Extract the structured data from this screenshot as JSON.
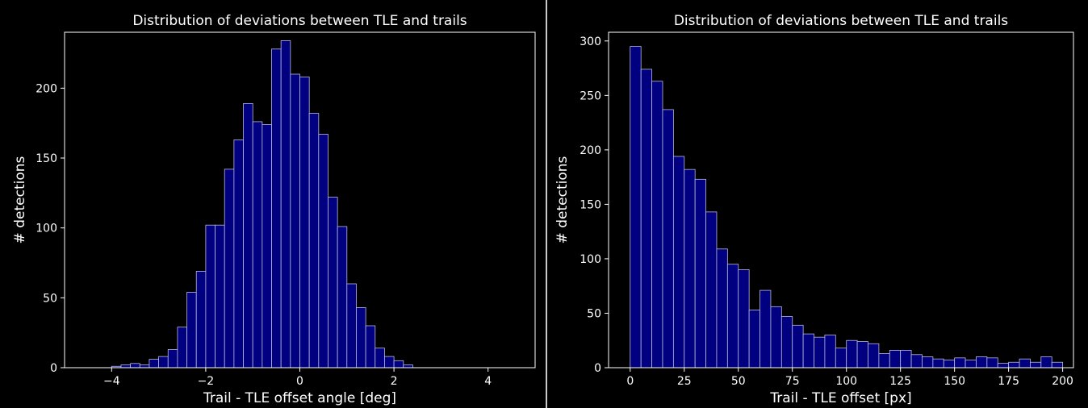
{
  "chart_data": [
    {
      "type": "bar",
      "title": "Distribution of deviations between TLE and trails",
      "xlabel": "Trail - TLE offset angle [deg]",
      "ylabel": "# detections",
      "xlim": [
        -5.0,
        5.0
      ],
      "ylim": [
        0,
        240
      ],
      "xticks": [
        -4,
        -2,
        0,
        2,
        4
      ],
      "xtick_labels": [
        "−4",
        "−2",
        "0",
        "2",
        "4"
      ],
      "yticks": [
        0,
        50,
        100,
        150,
        200
      ],
      "yticks_labels": [
        "0",
        "50",
        "100",
        "150",
        "200"
      ],
      "grid": false,
      "bin_start": -4.0,
      "bin_width": 0.2,
      "values": [
        1,
        2,
        3,
        2,
        6,
        8,
        13,
        29,
        54,
        69,
        102,
        102,
        142,
        163,
        189,
        176,
        174,
        228,
        234,
        210,
        208,
        182,
        167,
        122,
        101,
        60,
        43,
        30,
        14,
        8,
        5,
        2
      ],
      "bar_color": "#000080",
      "edge_color": "#b9b9dd"
    },
    {
      "type": "bar",
      "title": "Distribution of deviations between TLE and trails",
      "xlabel": "Trail - TLE offset [px]",
      "ylabel": "# detections",
      "xlim": [
        -10,
        205
      ],
      "ylim": [
        0,
        308
      ],
      "xticks": [
        0,
        25,
        50,
        75,
        100,
        125,
        150,
        175,
        200
      ],
      "xtick_labels": [
        "0",
        "25",
        "50",
        "75",
        "100",
        "125",
        "150",
        "175",
        "200"
      ],
      "yticks": [
        0,
        50,
        100,
        150,
        200,
        250,
        300
      ],
      "yticks_labels": [
        "0",
        "50",
        "100",
        "150",
        "200",
        "250",
        "300"
      ],
      "grid": false,
      "bin_start": 0,
      "bin_width": 5,
      "values": [
        295,
        274,
        263,
        237,
        194,
        182,
        173,
        143,
        109,
        95,
        90,
        53,
        71,
        56,
        47,
        39,
        31,
        28,
        30,
        18,
        25,
        24,
        22,
        13,
        16,
        16,
        12,
        10,
        8,
        7,
        9,
        7,
        10,
        9,
        4,
        5,
        8,
        5,
        10,
        5
      ],
      "bar_color": "#000080",
      "edge_color": "#b9b9dd"
    }
  ]
}
